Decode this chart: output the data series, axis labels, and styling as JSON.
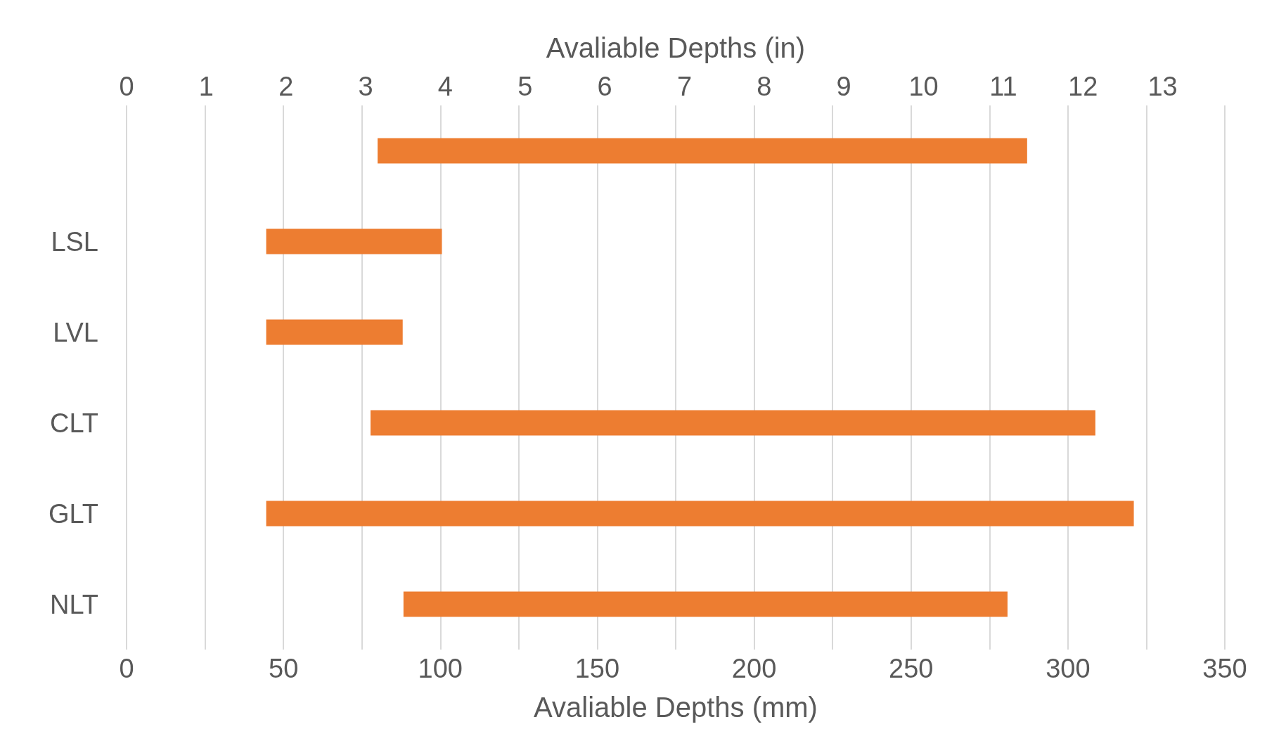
{
  "chart_data": {
    "type": "bar",
    "orientation": "horizontal",
    "categories": [
      null,
      "LSL",
      "LVL",
      "CLT",
      "GLT",
      "NLT"
    ],
    "values": [
      207,
      56,
      43.5,
      231,
      276.5,
      192.5
    ],
    "base": [
      80,
      44.5,
      44.5,
      77.75,
      44.5,
      88.25
    ],
    "color": "#ed7d31",
    "xlabel": "Avaliable Depths (mm)",
    "x2label": "Avaliable Depths (in)",
    "xlim": [
      0,
      350
    ],
    "xticks": [
      0,
      {
        "value": 25,
        "label": null
      },
      50,
      {
        "value": 75,
        "label": null
      },
      100,
      {
        "value": 125,
        "label": null
      },
      150,
      {
        "value": 175,
        "label": null
      },
      200,
      {
        "value": 225,
        "label": null
      },
      250,
      {
        "value": 275,
        "label": null
      },
      300,
      {
        "value": 325,
        "label": null
      },
      350
    ],
    "x2lim": [
      0,
      13.78
    ],
    "x2ticks": [
      0,
      1,
      2,
      3,
      4,
      5,
      6,
      7,
      8,
      9,
      10,
      11,
      12,
      13
    ],
    "grid": "x"
  }
}
